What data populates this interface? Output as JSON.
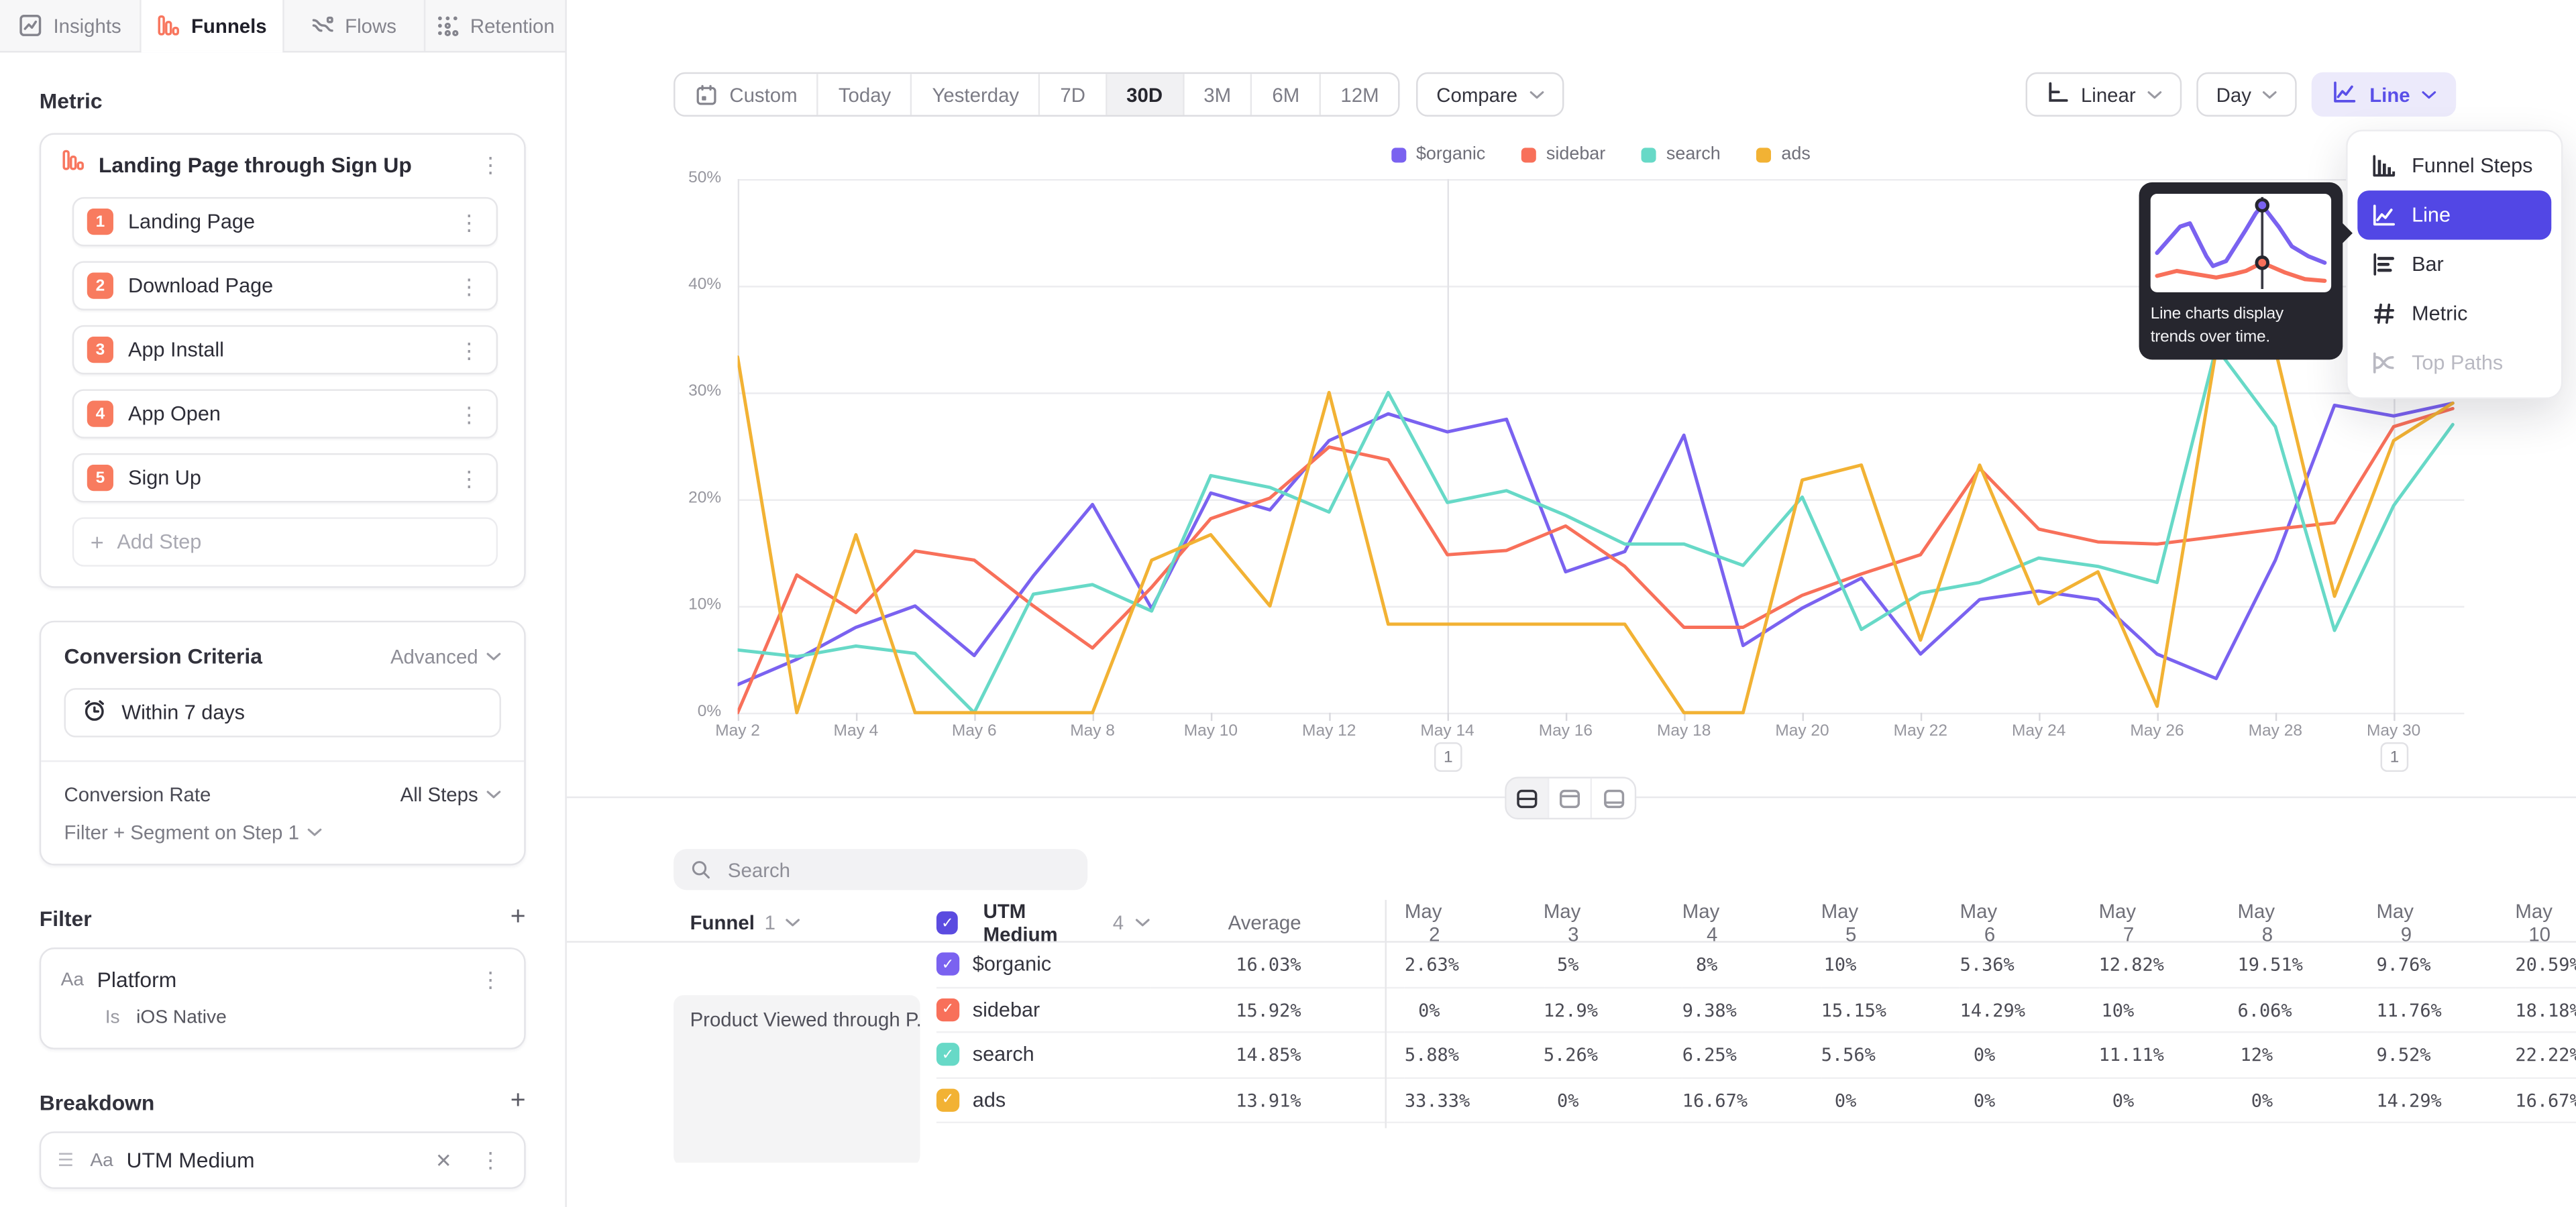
{
  "tabs": [
    {
      "label": "Insights",
      "icon": "insights",
      "active": false
    },
    {
      "label": "Funnels",
      "icon": "funnels",
      "active": true
    },
    {
      "label": "Flows",
      "icon": "flows",
      "active": false
    },
    {
      "label": "Retention",
      "icon": "retention",
      "active": false
    }
  ],
  "sidebar": {
    "metric_label": "Metric",
    "funnel": {
      "title": "Landing Page through Sign Up",
      "steps": [
        {
          "num": "1",
          "label": "Landing Page"
        },
        {
          "num": "2",
          "label": "Download Page"
        },
        {
          "num": "3",
          "label": "App Install"
        },
        {
          "num": "4",
          "label": "App Open"
        },
        {
          "num": "5",
          "label": "Sign Up"
        }
      ],
      "add_step": "Add Step"
    },
    "conversion": {
      "title": "Conversion Criteria",
      "advanced": "Advanced",
      "window": "Within 7 days",
      "rate_label": "Conversion Rate",
      "rate_value": "All Steps",
      "filter_segment": "Filter + Segment on Step 1"
    },
    "filter": {
      "title": "Filter",
      "type": "Aa",
      "property": "Platform",
      "operator": "Is",
      "value": "iOS Native"
    },
    "breakdown": {
      "title": "Breakdown",
      "type": "Aa",
      "property": "UTM Medium"
    }
  },
  "toolbar": {
    "presets": [
      "Custom",
      "Today",
      "Yesterday",
      "7D",
      "30D",
      "3M",
      "6M",
      "12M"
    ],
    "active_preset": "30D",
    "compare": "Compare",
    "scale": "Linear",
    "interval": "Day",
    "chart_type": "Line"
  },
  "chart_menu": {
    "items": [
      {
        "label": "Funnel Steps",
        "icon": "funnel-steps",
        "state": "normal"
      },
      {
        "label": "Line",
        "icon": "line",
        "state": "selected"
      },
      {
        "label": "Bar",
        "icon": "bar",
        "state": "normal"
      },
      {
        "label": "Metric",
        "icon": "metric",
        "state": "normal"
      },
      {
        "label": "Top Paths",
        "icon": "top-paths",
        "state": "disabled"
      }
    ],
    "tooltip": {
      "text": "Line charts display trends over time."
    }
  },
  "chart_data": {
    "type": "line",
    "title": "",
    "xlabel": "",
    "ylabel": "",
    "ylim": [
      0,
      50
    ],
    "grid": "horizontal",
    "legend_position": "top",
    "y_tick_labels": [
      "0%",
      "10%",
      "20%",
      "30%",
      "40%",
      "50%"
    ],
    "x_tick_labels": [
      "May 2",
      "May 4",
      "May 6",
      "May 8",
      "May 10",
      "May 12",
      "May 14",
      "May 16",
      "May 18",
      "May 20",
      "May 22",
      "May 24",
      "May 26",
      "May 28",
      "May 30"
    ],
    "x": [
      "May 2",
      "May 3",
      "May 4",
      "May 5",
      "May 6",
      "May 7",
      "May 8",
      "May 9",
      "May 10",
      "May 11",
      "May 12",
      "May 13",
      "May 14",
      "May 15",
      "May 16",
      "May 17",
      "May 18",
      "May 19",
      "May 20",
      "May 21",
      "May 22",
      "May 23",
      "May 24",
      "May 25",
      "May 26",
      "May 27",
      "May 28",
      "May 29",
      "May 30",
      "May 31"
    ],
    "series": [
      {
        "name": "$organic",
        "color": "#7A62F0",
        "values": [
          2.63,
          5,
          8,
          10,
          5.36,
          12.82,
          19.51,
          9.76,
          20.59,
          19,
          25.5,
          28,
          26.3,
          27.5,
          13.2,
          15.1,
          26,
          6.3,
          9.8,
          12.6,
          5.5,
          10.6,
          11.4,
          10.6,
          5.5,
          3.2,
          14.3,
          28.8,
          27.8,
          29
        ]
      },
      {
        "name": "sidebar",
        "color": "#F8705A",
        "values": [
          0,
          12.9,
          9.38,
          15.15,
          14.29,
          10,
          6.06,
          11.76,
          18.18,
          20.1,
          24.9,
          23.7,
          14.8,
          15.2,
          17.5,
          13.7,
          8,
          8,
          11,
          13,
          14.8,
          22.9,
          17.2,
          16,
          15.8,
          16.5,
          17.2,
          17.8,
          26.8,
          28.5
        ]
      },
      {
        "name": "search",
        "color": "#67D9C7",
        "values": [
          5.88,
          5.26,
          6.25,
          5.56,
          0,
          11.11,
          12,
          9.52,
          22.22,
          21.1,
          18.8,
          30,
          19.7,
          20.8,
          18.5,
          15.8,
          15.8,
          13.8,
          20.2,
          7.8,
          11.2,
          12.2,
          14.5,
          13.7,
          12.2,
          34.2,
          26.8,
          7.7,
          19.4,
          27
        ]
      },
      {
        "name": "ads",
        "color": "#F2B234",
        "values": [
          33.33,
          0,
          16.67,
          0,
          0,
          0,
          0,
          14.29,
          16.67,
          10,
          30,
          8.3,
          8.3,
          8.3,
          8.3,
          8.3,
          0,
          0,
          21.8,
          23.2,
          6.8,
          23.2,
          10.2,
          13.2,
          0.6,
          34,
          34,
          10.9,
          25.5,
          29
        ]
      }
    ],
    "annotations": [
      {
        "label": "1",
        "x": "May 14",
        "index": 12
      },
      {
        "label": "1",
        "x": "May 30",
        "index": 28
      }
    ]
  },
  "view_toggle": {
    "options": [
      {
        "name": "split",
        "icon": "split"
      },
      {
        "name": "chart-only",
        "icon": "split-top"
      },
      {
        "name": "table-only",
        "icon": "split-bottom"
      }
    ],
    "active": "split"
  },
  "table": {
    "search_placeholder": "Search",
    "funnel_header": {
      "label": "Funnel",
      "count": "1"
    },
    "breakdown_header": {
      "label": "UTM Medium",
      "count": "4"
    },
    "funnel_cell": "Product Viewed through P...",
    "columns": [
      "Average",
      "May 2",
      "May 3",
      "May 4",
      "May 5",
      "May 6",
      "May 7",
      "May 8",
      "May 9",
      "May 10"
    ],
    "rows": [
      {
        "name": "$organic",
        "color": "#7A62F0",
        "average": "16.03%",
        "values": [
          "2.63%",
          "5%",
          "8%",
          "10%",
          "5.36%",
          "12.82%",
          "19.51%",
          "9.76%",
          "20.59%"
        ]
      },
      {
        "name": "sidebar",
        "color": "#F8705A",
        "average": "15.92%",
        "values": [
          "0%",
          "12.9%",
          "9.38%",
          "15.15%",
          "14.29%",
          "10%",
          "6.06%",
          "11.76%",
          "18.18%"
        ]
      },
      {
        "name": "search",
        "color": "#67D9C7",
        "average": "14.85%",
        "values": [
          "5.88%",
          "5.26%",
          "6.25%",
          "5.56%",
          "0%",
          "11.11%",
          "12%",
          "9.52%",
          "22.22%"
        ]
      },
      {
        "name": "ads",
        "color": "#F2B234",
        "average": "13.91%",
        "values": [
          "33.33%",
          "0%",
          "16.67%",
          "0%",
          "0%",
          "0%",
          "0%",
          "14.29%",
          "16.67%"
        ]
      }
    ]
  }
}
